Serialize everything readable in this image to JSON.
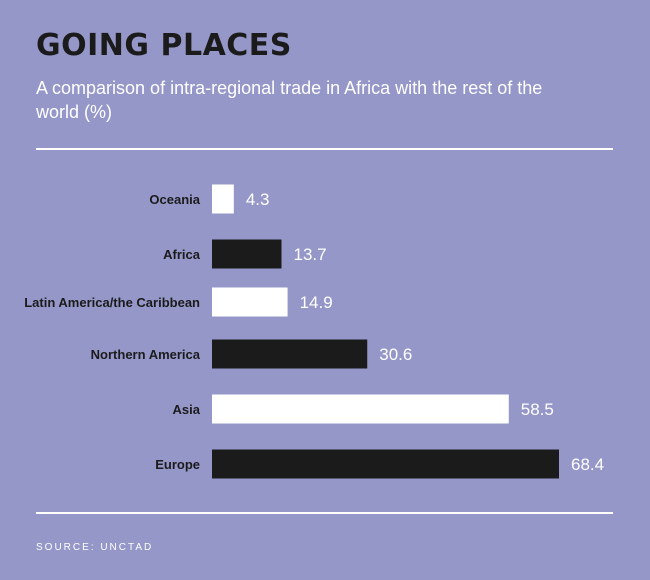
{
  "header": {
    "title": "GOING PLACES",
    "subtitle": "A comparison of intra-regional trade in Africa with the rest of the world (%)"
  },
  "chart_data": {
    "type": "bar",
    "orientation": "horizontal",
    "categories": [
      "Oceania",
      "Africa",
      "Latin America/the Caribbean",
      "Northern America",
      "Asia",
      "Europe"
    ],
    "values": [
      4.3,
      13.7,
      14.9,
      30.6,
      58.5,
      68.4
    ],
    "value_labels": [
      "4.3",
      "13.7",
      "14.9",
      "30.6",
      "58.5",
      "68.4"
    ],
    "bar_colors": [
      "#ffffff",
      "#1c1b1c",
      "#ffffff",
      "#1c1b1c",
      "#ffffff",
      "#1c1b1c"
    ],
    "xlim": [
      0,
      68.4
    ],
    "grid": false,
    "legend": "none"
  },
  "footer": {
    "source": "SOURCE: UNCTAD"
  },
  "colors": {
    "background": "#9597c9",
    "dark": "#1c1b1c",
    "light": "#ffffff"
  }
}
